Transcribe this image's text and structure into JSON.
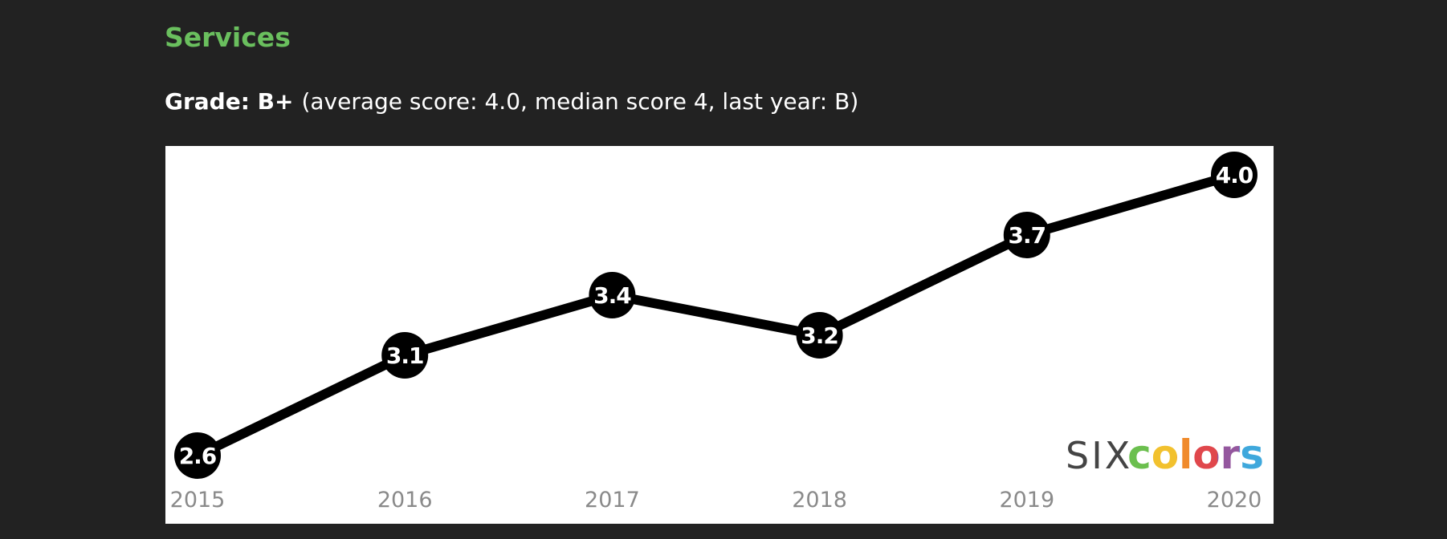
{
  "header": {
    "title": "Services",
    "grade_label": "Grade: B+",
    "grade_detail": "(average score: 4.0, median score 4, last year: B)"
  },
  "chart_data": {
    "type": "line",
    "categories": [
      "2015",
      "2016",
      "2017",
      "2018",
      "2019",
      "2020"
    ],
    "values": [
      2.6,
      3.1,
      3.4,
      3.2,
      3.7,
      4.0
    ],
    "value_labels": [
      "2.6",
      "3.1",
      "3.4",
      "3.2",
      "3.7",
      "4.0"
    ],
    "color": "#000000",
    "logo": {
      "six": "SIX",
      "colors": "colors"
    }
  }
}
